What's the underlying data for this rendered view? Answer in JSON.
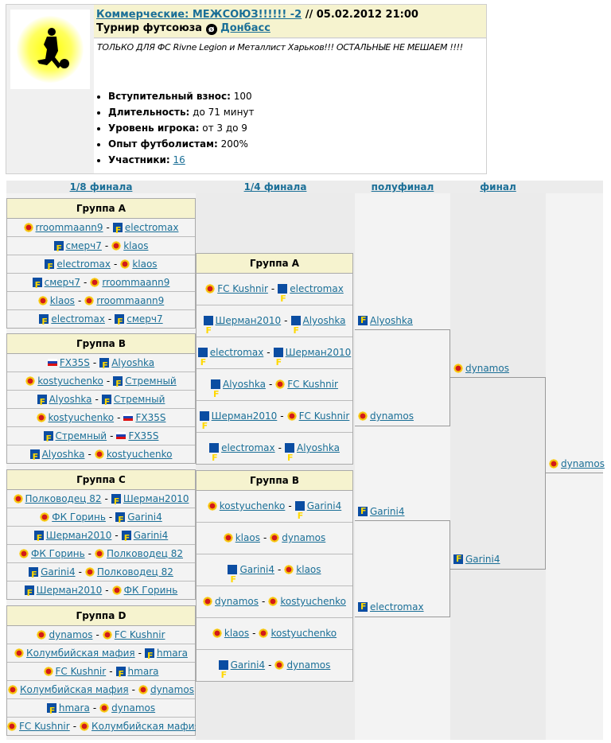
{
  "tournament": {
    "title_link": "Коммерческие: МЕЖСОЮЗ!!!!!! -2",
    "date": " // 05.02.2012 21:00",
    "subtitle": "Турнир футсоюза",
    "union_link": "Донбасс",
    "description": "ТОЛЬКО ДЛЯ ФС Rivne Legion и Металлист Харьков!!! ОСТАЛЬНЫЕ НЕ МЕШАЕМ !!!!",
    "facts": [
      {
        "label": "Вступительный взнос:",
        "value": " 100"
      },
      {
        "label": "Длительность:",
        "value": " до 71 минут"
      },
      {
        "label": "Уровень игрока:",
        "value": " от 3 до 9"
      },
      {
        "label": "Опыт футболистам:",
        "value": " 200%"
      },
      {
        "label": "Участники:",
        "link": "16"
      }
    ]
  },
  "rounds": [
    "1/8 финала",
    "1/4 финала",
    "полуфинал",
    "финал"
  ],
  "group_stage": [
    {
      "name": "Группа A",
      "matches": [
        [
          [
            "rroommaann9",
            "crest"
          ],
          [
            "electromax",
            "f"
          ]
        ],
        [
          [
            "смерч7",
            "f"
          ],
          [
            "klaos",
            "crest"
          ]
        ],
        [
          [
            "electromax",
            "f"
          ],
          [
            "klaos",
            "crest"
          ]
        ],
        [
          [
            "смерч7",
            "f"
          ],
          [
            "rroommaann9",
            "crest"
          ]
        ],
        [
          [
            "klaos",
            "crest"
          ],
          [
            "rroommaann9",
            "crest"
          ]
        ],
        [
          [
            "electromax",
            "f"
          ],
          [
            "смерч7",
            "f"
          ]
        ]
      ]
    },
    {
      "name": "Группа B",
      "matches": [
        [
          [
            "FX35S",
            "flag"
          ],
          [
            "Alyoshka",
            "f"
          ]
        ],
        [
          [
            "kostyuchenko",
            "crest"
          ],
          [
            "Стремный",
            "f"
          ]
        ],
        [
          [
            "Alyoshka",
            "f"
          ],
          [
            "Стремный",
            "f"
          ]
        ],
        [
          [
            "kostyuchenko",
            "crest"
          ],
          [
            "FX35S",
            "flag"
          ]
        ],
        [
          [
            "Стремный",
            "f"
          ],
          [
            "FX35S",
            "flag"
          ]
        ],
        [
          [
            "Alyoshka",
            "f"
          ],
          [
            "kostyuchenko",
            "crest"
          ]
        ]
      ]
    },
    {
      "name": "Группа C",
      "matches": [
        [
          [
            "Полководец 82",
            "crest"
          ],
          [
            "Шерман2010",
            "f"
          ]
        ],
        [
          [
            "ФК Горинь",
            "crest"
          ],
          [
            "Garini4",
            "f"
          ]
        ],
        [
          [
            "Шерман2010",
            "f"
          ],
          [
            "Garini4",
            "f"
          ]
        ],
        [
          [
            "ФК Горинь",
            "crest"
          ],
          [
            "Полководец 82",
            "crest"
          ]
        ],
        [
          [
            "Garini4",
            "f"
          ],
          [
            "Полководец 82",
            "crest"
          ]
        ],
        [
          [
            "Шерман2010",
            "f"
          ],
          [
            "ФК Горинь",
            "crest"
          ]
        ]
      ]
    },
    {
      "name": "Группа D",
      "matches": [
        [
          [
            "dynamos",
            "crest"
          ],
          [
            "FC Kushnir",
            "crest"
          ]
        ],
        [
          [
            "Колумбийская мафия",
            "crest"
          ],
          [
            "hmara",
            "f"
          ]
        ],
        [
          [
            "FC Kushnir",
            "crest"
          ],
          [
            "hmara",
            "f"
          ]
        ],
        [
          [
            "Колумбийская мафия",
            "crest"
          ],
          [
            "dynamos",
            "crest"
          ]
        ],
        [
          [
            "hmara",
            "f"
          ],
          [
            "dynamos",
            "crest"
          ]
        ],
        [
          [
            "FC Kushnir",
            "crest"
          ],
          [
            "Колумбийская мафия",
            "crest"
          ]
        ]
      ]
    }
  ],
  "quarter_groups": [
    {
      "name": "Группа A",
      "matches": [
        [
          [
            "FC Kushnir",
            "crest"
          ],
          [
            "electromax",
            "f"
          ]
        ],
        [
          [
            "Шерман2010",
            "f"
          ],
          [
            "Alyoshka",
            "f"
          ]
        ],
        [
          [
            "electromax",
            "f"
          ],
          [
            "Шерман2010",
            "f"
          ]
        ],
        [
          [
            "Alyoshka",
            "f"
          ],
          [
            "FC Kushnir",
            "crest"
          ]
        ],
        [
          [
            "Шерман2010",
            "f"
          ],
          [
            "FC Kushnir",
            "crest"
          ]
        ],
        [
          [
            "electromax",
            "f"
          ],
          [
            "Alyoshka",
            "f"
          ]
        ]
      ]
    },
    {
      "name": "Группа B",
      "matches": [
        [
          [
            "kostyuchenko",
            "crest"
          ],
          [
            "Garini4",
            "f"
          ]
        ],
        [
          [
            "klaos",
            "crest"
          ],
          [
            "dynamos",
            "crest"
          ]
        ],
        [
          [
            "Garini4",
            "f"
          ],
          [
            "klaos",
            "crest"
          ]
        ],
        [
          [
            "dynamos",
            "crest"
          ],
          [
            "kostyuchenko",
            "crest"
          ]
        ],
        [
          [
            "klaos",
            "crest"
          ],
          [
            "kostyuchenko",
            "crest"
          ]
        ],
        [
          [
            "Garini4",
            "f"
          ],
          [
            "dynamos",
            "crest"
          ]
        ]
      ]
    }
  ],
  "semifinal": [
    [
      "Alyoshka",
      "f"
    ],
    [
      "dynamos",
      "crest"
    ],
    [
      "Garini4",
      "f"
    ],
    [
      "electromax",
      "f"
    ]
  ],
  "final": [
    [
      "dynamos",
      "crest"
    ],
    [
      "Garini4",
      "f"
    ]
  ],
  "winner": [
    "dynamos",
    "crest"
  ]
}
